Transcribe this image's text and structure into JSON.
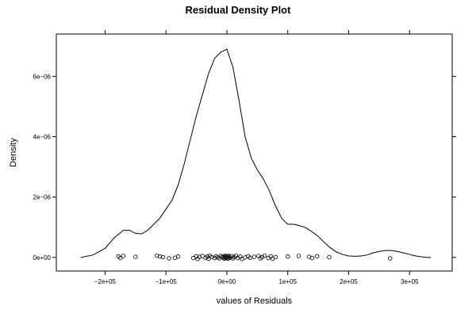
{
  "chart_data": {
    "type": "line",
    "title": "Residual Density Plot",
    "xlabel": "values of Residuals",
    "ylabel": "Density",
    "xlim": [
      -280000,
      370000
    ],
    "ylim": [
      -4.5e-07,
      7.4e-06
    ],
    "xticks": [
      -200000,
      -100000,
      0,
      100000,
      200000,
      300000
    ],
    "xtick_labels": [
      "−2e+05",
      "−1e+05",
      "0e+00",
      "1e+05",
      "2e+05",
      "3e+05"
    ],
    "yticks": [
      0,
      2e-06,
      4e-06,
      6e-06
    ],
    "ytick_labels": [
      "0e+00",
      "2e−06",
      "4e−06",
      "6e−06"
    ],
    "grid": false,
    "line_color": "#000000",
    "density": {
      "x": [
        -240000,
        -220000,
        -200000,
        -185000,
        -170000,
        -160000,
        -150000,
        -140000,
        -130000,
        -120000,
        -110000,
        -100000,
        -90000,
        -80000,
        -70000,
        -60000,
        -50000,
        -40000,
        -30000,
        -20000,
        -10000,
        0,
        10000,
        20000,
        30000,
        40000,
        50000,
        60000,
        70000,
        80000,
        90000,
        100000,
        110000,
        120000,
        130000,
        140000,
        150000,
        160000,
        170000,
        180000,
        190000,
        200000,
        210000,
        220000,
        230000,
        240000,
        250000,
        260000,
        270000,
        280000,
        290000,
        300000,
        310000,
        320000,
        330000,
        335000
      ],
      "y": [
        0.0,
        8e-08,
        3e-07,
        6.5e-07,
        9e-07,
        9e-07,
        8e-07,
        7.8e-07,
        9e-07,
        1.1e-06,
        1.3e-06,
        1.6e-06,
        1.9e-06,
        2.4e-06,
        3.1e-06,
        3.9e-06,
        4.7e-06,
        5.4e-06,
        6.1e-06,
        6.6e-06,
        6.8e-06,
        6.9e-06,
        6.3e-06,
        5.2e-06,
        4e-06,
        3.3e-06,
        2.9e-06,
        2.6e-06,
        2.2e-06,
        1.7e-06,
        1.3e-06,
        1.1e-06,
        1.1e-06,
        1.05e-06,
        9.8e-07,
        8.5e-07,
        7e-07,
        5e-07,
        3.2e-07,
        1.8e-07,
        1e-07,
        5e-08,
        4e-08,
        5e-08,
        8e-08,
        1.5e-07,
        2e-07,
        2.3e-07,
        2.3e-07,
        2e-07,
        1.5e-07,
        1e-07,
        5e-08,
        2e-08,
        0.0,
        0.0
      ]
    },
    "rug_points": {
      "x": [
        -178000,
        -175000,
        -170000,
        -150000,
        -115000,
        -110000,
        -105000,
        -95000,
        -85000,
        -80000,
        -55000,
        -50000,
        -48000,
        -45000,
        -40000,
        -35000,
        -32000,
        -30000,
        -28000,
        -25000,
        -20000,
        -18000,
        -15000,
        -12000,
        -10000,
        -8000,
        -6000,
        -5000,
        -4000,
        -3000,
        -2000,
        -1000,
        0,
        1000,
        2000,
        3000,
        4000,
        5000,
        8000,
        10000,
        12000,
        15000,
        18000,
        22000,
        25000,
        30000,
        35000,
        38000,
        45000,
        52000,
        55000,
        58000,
        62000,
        68000,
        72000,
        75000,
        80000,
        100000,
        118000,
        135000,
        140000,
        148000,
        168000,
        268000
      ],
      "y": [
        4e-08,
        -2e-08,
        5e-08,
        2e-08,
        6e-08,
        3e-08,
        1e-08,
        -3e-08,
        -1e-08,
        3e-08,
        -2e-08,
        4e-08,
        -5e-08,
        2e-08,
        5e-08,
        -1e-08,
        3e-08,
        -4e-08,
        6e-08,
        1e-08,
        -2e-08,
        4e-08,
        0.0,
        -3e-08,
        5e-08,
        2e-08,
        -1e-08,
        4e-08,
        -4e-08,
        1e-08,
        6e-08,
        -2e-08,
        3e-08,
        0.0,
        -4e-08,
        5e-08,
        2e-08,
        -1e-08,
        4e-08,
        -3e-08,
        1e-08,
        6e-08,
        -2e-08,
        3e-08,
        -5e-08,
        0.0,
        4e-08,
        -1e-08,
        2e-08,
        5e-08,
        -3e-08,
        1e-08,
        6e-08,
        -2e-08,
        4e-08,
        -4e-08,
        1e-08,
        3e-08,
        5e-08,
        2e-08,
        -2e-08,
        4e-08,
        1e-08,
        -3e-08
      ]
    }
  }
}
